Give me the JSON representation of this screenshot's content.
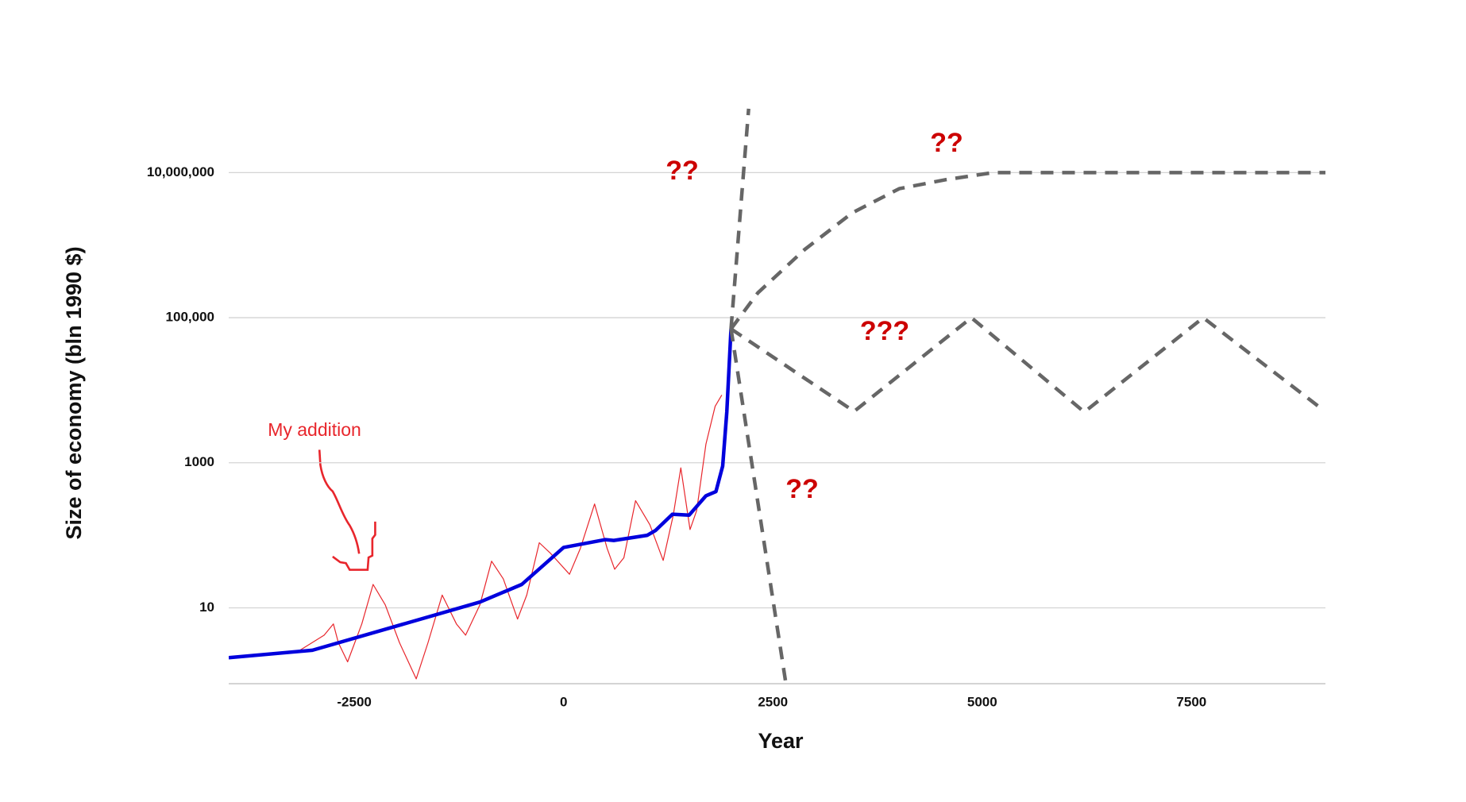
{
  "chart_data": {
    "type": "line",
    "x_label": "Year",
    "y_label": "Size of economy (bln 1990 $)",
    "log_y": true,
    "grid": true,
    "xlim": [
      -4000,
      9100
    ],
    "ylim": [
      0.9,
      100000000
    ],
    "xticks": [
      -2500,
      0,
      2500,
      5000,
      7500
    ],
    "yticks": [
      10,
      1000,
      {
        "value": 100000,
        "label": "100,000"
      },
      {
        "value": 10000000,
        "label": "10,000,000"
      }
    ],
    "series": [
      {
        "color": "#e8262c",
        "style": "thin",
        "x": [
          -3150,
          -2860,
          -2750,
          -2690,
          -2580,
          -2410,
          -2275,
          -2130,
          -1960,
          -1760,
          -1620,
          -1450,
          -1280,
          -1170,
          -1000,
          -860,
          -720,
          -550,
          -440,
          -290,
          -160,
          70,
          200,
          370,
          520,
          610,
          720,
          860,
          1030,
          1190,
          1310,
          1400,
          1510,
          1590,
          1700,
          1810,
          1890
        ],
        "values": [
          2.6,
          4.2,
          6,
          3.3,
          1.8,
          6,
          21,
          11,
          3.3,
          1.05,
          3.3,
          15,
          6,
          4.2,
          11,
          44,
          25,
          7,
          15,
          79,
          57,
          29,
          66,
          270,
          66,
          34,
          49,
          300,
          140,
          45,
          190,
          850,
          120,
          220,
          1800,
          6000,
          8600
        ]
      },
      {
        "color": "#0000dd",
        "style": "solid",
        "x": [
          -4000,
          -3000,
          -1000,
          -500,
          0,
          500,
          600,
          1000,
          1100,
          1300,
          1500,
          1700,
          1820,
          1900,
          1950,
          2000
        ],
        "values": [
          2.05,
          2.6,
          12,
          21,
          68,
          87,
          85,
          100,
          117,
          195,
          190,
          350,
          400,
          900,
          5000,
          70000
        ]
      },
      {
        "color": "#666666",
        "style": "dashed",
        "x": [
          2000,
          2210
        ],
        "values": [
          70000,
          76000000
        ]
      },
      {
        "color": "#666666",
        "style": "dashed",
        "x": [
          2000,
          2650
        ],
        "values": [
          70000,
          1
        ]
      },
      {
        "color": "#666666",
        "style": "dashed",
        "x": [
          2000,
          2320,
          2880,
          3450,
          4010,
          4570,
          5130,
          9100
        ],
        "values": [
          70000,
          220000,
          870000,
          2800000,
          6000000,
          8000000,
          10000000,
          10000000
        ]
      },
      {
        "color": "#666666",
        "style": "dashed",
        "x": [
          2000,
          3470,
          4870,
          6220,
          7640,
          9050
        ],
        "values": [
          70000,
          5100,
          100000,
          5000,
          100000,
          5600
        ]
      }
    ],
    "annotations": [
      "??",
      "??",
      "???",
      "??",
      "My addition"
    ]
  }
}
